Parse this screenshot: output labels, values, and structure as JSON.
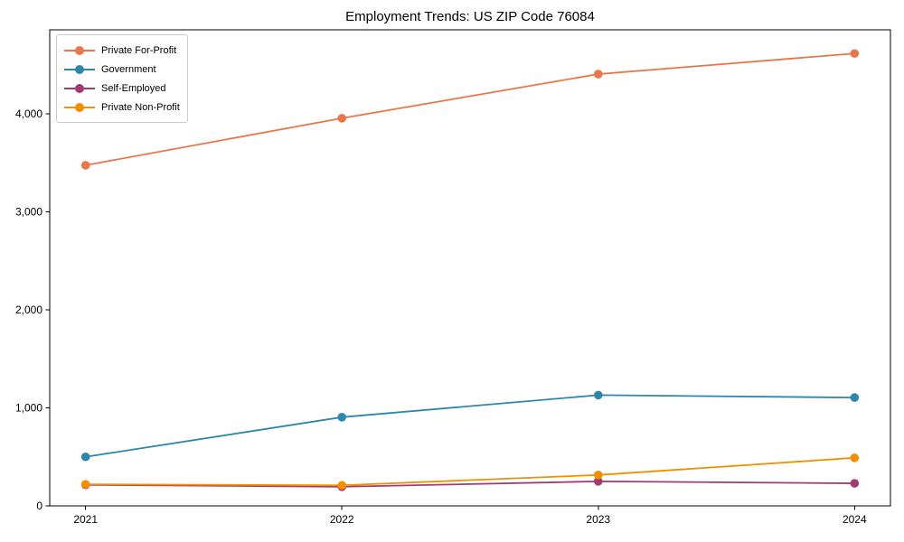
{
  "title": "Employment Trends: US ZIP Code 76084",
  "chart_data": {
    "type": "line",
    "x": [
      2021,
      2022,
      2023,
      2024
    ],
    "xtick_labels": [
      "2021",
      "2022",
      "2023",
      "2024"
    ],
    "series": [
      {
        "name": "Private For-Profit",
        "color": "#e8764b",
        "values": [
          3475,
          3955,
          4405,
          4615
        ]
      },
      {
        "name": "Government",
        "color": "#2e86ab",
        "values": [
          500,
          905,
          1130,
          1105
        ]
      },
      {
        "name": "Self-Employed",
        "color": "#a23b72",
        "values": [
          215,
          195,
          250,
          230
        ]
      },
      {
        "name": "Private Non-Profit",
        "color": "#f18f01",
        "values": [
          220,
          210,
          315,
          490
        ]
      }
    ],
    "title": "Employment Trends: US ZIP Code 76084",
    "xlabel": "",
    "ylabel": "",
    "xlim": [
      2020.86,
      2024.14
    ],
    "ylim": [
      0,
      4857
    ],
    "yticks": [
      0,
      1000,
      2000,
      3000,
      4000
    ],
    "ytick_labels": [
      "0",
      "1,000",
      "2,000",
      "3,000",
      "4,000"
    ],
    "grid": false,
    "legend_position": "upper left",
    "axis_color": "#000000"
  }
}
